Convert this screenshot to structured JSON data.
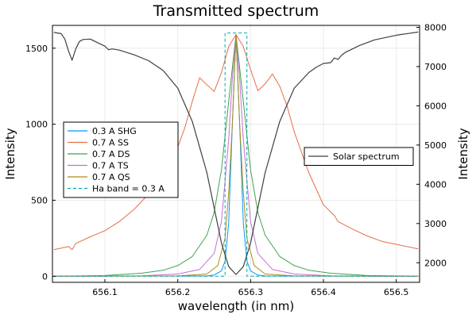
{
  "chart_data": {
    "type": "line",
    "title": "Transmitted spectrum",
    "xlabel": "wavelength (in nm)",
    "ylabel_left": "Intensity",
    "ylabel_right": "Intensity",
    "xlim": [
      656.028,
      656.532
    ],
    "ylim_left": [
      -40,
      1650
    ],
    "ylim_right": [
      1500,
      8050
    ],
    "x_ticks": [
      656.1,
      656.2,
      656.3,
      656.4,
      656.5
    ],
    "y_ticks_left": [
      0,
      500,
      1000,
      1500
    ],
    "y_ticks_right": [
      2000,
      3000,
      4000,
      5000,
      6000,
      7000,
      8000
    ],
    "x_tick_labels": [
      "656.1",
      "656.2",
      "656.3",
      "656.4",
      "656.5"
    ],
    "y_tick_labels_left": [
      "0",
      "500",
      "1000",
      "1500"
    ],
    "y_tick_labels_right": [
      "2000",
      "3000",
      "4000",
      "5000",
      "6000",
      "7000",
      "8000"
    ],
    "grid": true,
    "legend_left_placement": "center-left",
    "legend_right_placement": "center-right",
    "series": [
      {
        "name": "0.3 A SHG",
        "axis": "left",
        "color": "#009AFA",
        "dashed": false,
        "x": [
          656.03,
          656.24,
          656.25,
          656.26,
          656.265,
          656.27,
          656.275,
          656.28,
          656.285,
          656.29,
          656.295,
          656.3,
          656.31,
          656.32,
          656.53
        ],
        "y": [
          0,
          2,
          8,
          35,
          100,
          350,
          1000,
          1590,
          1000,
          350,
          100,
          35,
          8,
          2,
          0
        ]
      },
      {
        "name": "0.7 A SS",
        "axis": "left",
        "color": "#E36F47",
        "dashed": false,
        "x": [
          656.03,
          656.04,
          656.05,
          656.055,
          656.06,
          656.08,
          656.1,
          656.12,
          656.14,
          656.16,
          656.18,
          656.2,
          656.21,
          656.22,
          656.23,
          656.24,
          656.25,
          656.26,
          656.27,
          656.28,
          656.29,
          656.3,
          656.31,
          656.32,
          656.33,
          656.34,
          656.35,
          656.36,
          656.38,
          656.4,
          656.415,
          656.42,
          656.44,
          656.46,
          656.48,
          656.5,
          656.53
        ],
        "y": [
          175,
          185,
          195,
          175,
          215,
          260,
          300,
          360,
          440,
          540,
          670,
          850,
          980,
          1150,
          1305,
          1260,
          1215,
          1340,
          1510,
          1590,
          1510,
          1360,
          1220,
          1265,
          1330,
          1250,
          1120,
          950,
          680,
          470,
          400,
          360,
          310,
          265,
          230,
          210,
          180
        ]
      },
      {
        "name": "0.7 A DS",
        "axis": "left",
        "color": "#3EA44E",
        "dashed": false,
        "x": [
          656.03,
          656.1,
          656.15,
          656.18,
          656.2,
          656.22,
          656.24,
          656.25,
          656.26,
          656.27,
          656.28,
          656.29,
          656.3,
          656.31,
          656.32,
          656.34,
          656.36,
          656.38,
          656.41,
          656.46,
          656.53
        ],
        "y": [
          0,
          5,
          20,
          40,
          70,
          130,
          270,
          420,
          700,
          1150,
          1590,
          1150,
          700,
          420,
          270,
          130,
          70,
          40,
          20,
          5,
          0
        ]
      },
      {
        "name": "0.7 A TS",
        "axis": "left",
        "color": "#C271D2",
        "dashed": false,
        "x": [
          656.03,
          656.15,
          656.2,
          656.23,
          656.25,
          656.26,
          656.27,
          656.275,
          656.28,
          656.285,
          656.29,
          656.3,
          656.31,
          656.33,
          656.36,
          656.41,
          656.53
        ],
        "y": [
          0,
          3,
          15,
          45,
          150,
          360,
          900,
          1300,
          1590,
          1300,
          900,
          360,
          150,
          45,
          15,
          3,
          0
        ]
      },
      {
        "name": "0.7 A QS",
        "axis": "left",
        "color": "#AC8D18",
        "dashed": false,
        "x": [
          656.03,
          656.2,
          656.24,
          656.255,
          656.265,
          656.27,
          656.275,
          656.28,
          656.285,
          656.29,
          656.295,
          656.305,
          656.32,
          656.36,
          656.53
        ],
        "y": [
          0,
          2,
          15,
          70,
          250,
          550,
          1000,
          1590,
          1000,
          550,
          250,
          70,
          15,
          2,
          0
        ]
      },
      {
        "name": "Ha band = 0.3 A",
        "axis": "left",
        "color": "#00A9AD",
        "dashed": true,
        "x": [
          656.03,
          656.265,
          656.265,
          656.295,
          656.295,
          656.53
        ],
        "y": [
          0,
          0,
          1600,
          1600,
          0,
          0
        ]
      },
      {
        "name": "Solar spectrum",
        "axis": "right",
        "color": "#404040",
        "dashed": false,
        "x": [
          656.03,
          656.04,
          656.045,
          656.05,
          656.055,
          656.06,
          656.065,
          656.07,
          656.08,
          656.09,
          656.1,
          656.105,
          656.11,
          656.12,
          656.14,
          656.16,
          656.18,
          656.2,
          656.22,
          656.24,
          656.25,
          656.26,
          656.27,
          656.28,
          656.29,
          656.3,
          656.31,
          656.32,
          656.34,
          656.36,
          656.38,
          656.39,
          656.4,
          656.41,
          656.415,
          656.42,
          656.425,
          656.43,
          656.45,
          656.47,
          656.5,
          656.53
        ],
        "y": [
          7870,
          7840,
          7700,
          7400,
          7160,
          7450,
          7640,
          7690,
          7700,
          7610,
          7520,
          7430,
          7450,
          7420,
          7300,
          7150,
          6900,
          6450,
          5600,
          4300,
          3400,
          2500,
          1900,
          1700,
          1900,
          2500,
          3400,
          4300,
          5600,
          6450,
          6850,
          6980,
          7080,
          7100,
          7220,
          7180,
          7290,
          7360,
          7540,
          7680,
          7800,
          7880
        ]
      }
    ]
  }
}
